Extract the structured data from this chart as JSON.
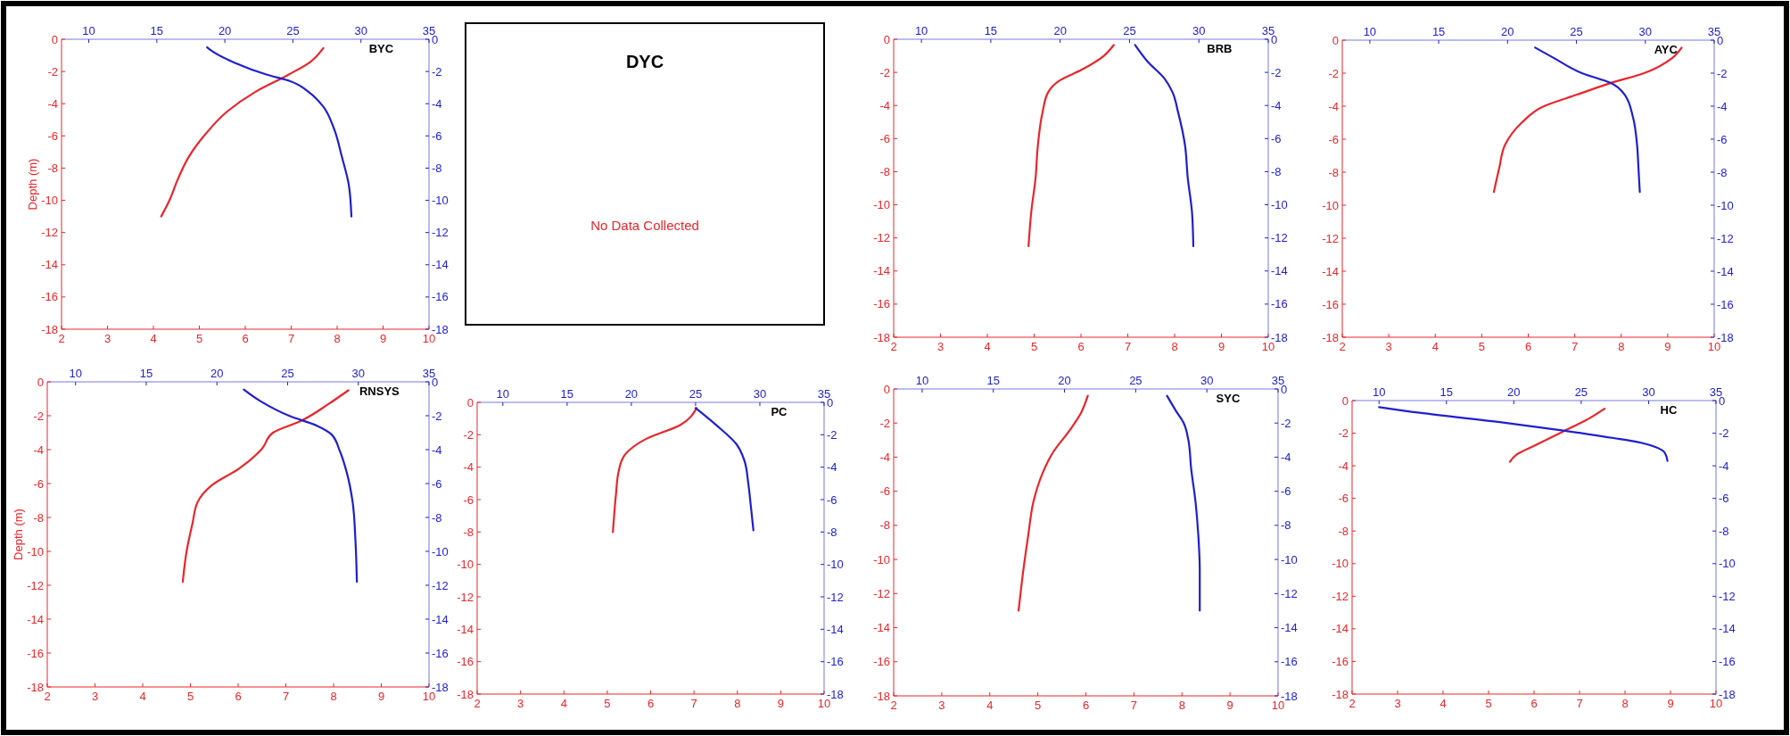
{
  "chart_data": [
    {
      "type": "line",
      "title": "BYC",
      "ylabel": "Depth (m)",
      "xlim": [
        2,
        10
      ],
      "xticks": [
        2,
        3,
        4,
        5,
        6,
        7,
        8,
        9,
        10
      ],
      "x2lim": [
        8,
        35
      ],
      "x2ticks": [
        10,
        15,
        20,
        25,
        30,
        35
      ],
      "ylim": [
        -18,
        0
      ],
      "yticks": [
        0,
        -2,
        -4,
        -6,
        -8,
        -10,
        -12,
        -14,
        -16,
        -18
      ],
      "y2lim": [
        -18,
        0
      ],
      "y2ticks": [
        0,
        -2,
        -4,
        -6,
        -8,
        -10,
        -12,
        -14,
        -16,
        -18
      ],
      "series": [
        {
          "color": "#e8262b",
          "x": [
            7.7,
            7.42,
            6.94,
            6.2,
            5.6,
            5.13,
            4.77,
            4.53,
            4.35,
            4.17
          ],
          "values": [
            -0.55,
            -1.4,
            -2.2,
            -3.3,
            -4.5,
            -5.9,
            -7.3,
            -8.7,
            -10.0,
            -11.0
          ]
        },
        {
          "color": "#1f1fcf",
          "axis": "x2",
          "x": [
            18.7,
            19.0,
            20.7,
            23.1,
            24.8,
            26.2,
            27.2,
            28.0,
            28.6,
            29.1,
            29.3
          ],
          "values": [
            -0.5,
            -0.7,
            -1.45,
            -2.2,
            -2.6,
            -3.3,
            -4.15,
            -5.5,
            -7.3,
            -9.0,
            -11.0
          ]
        }
      ]
    },
    {
      "type": "other",
      "title": "DYC",
      "annotations": [
        "No Data Collected"
      ]
    },
    {
      "type": "line",
      "title": "BRB",
      "xlim": [
        2,
        10
      ],
      "xticks": [
        2,
        3,
        4,
        5,
        6,
        7,
        8,
        9,
        10
      ],
      "x2lim": [
        8,
        35
      ],
      "x2ticks": [
        10,
        15,
        20,
        25,
        30,
        35
      ],
      "ylim": [
        -18,
        0
      ],
      "yticks": [
        0,
        -2,
        -4,
        -6,
        -8,
        -10,
        -12,
        -14,
        -16,
        -18
      ],
      "y2lim": [
        -18,
        0
      ],
      "y2ticks": [
        0,
        -2,
        -4,
        -6,
        -8,
        -10,
        -12,
        -14,
        -16,
        -18
      ],
      "series": [
        {
          "color": "#e8262b",
          "x": [
            6.7,
            6.49,
            6.01,
            5.54,
            5.3,
            5.18,
            5.08,
            5.03,
            4.94,
            4.88
          ],
          "values": [
            -0.35,
            -1.0,
            -1.85,
            -2.5,
            -3.2,
            -4.4,
            -6.4,
            -8.4,
            -10.4,
            -12.5
          ]
        },
        {
          "color": "#1f1fcf",
          "axis": "x2",
          "x": [
            25.4,
            26.3,
            27.5,
            28.1,
            28.5,
            29.0,
            29.2,
            29.5,
            29.6
          ],
          "values": [
            -0.35,
            -1.35,
            -2.35,
            -3.2,
            -4.4,
            -6.4,
            -8.4,
            -10.4,
            -12.5
          ]
        }
      ]
    },
    {
      "type": "line",
      "title": "AYC",
      "xlim": [
        2,
        10
      ],
      "xticks": [
        2,
        3,
        4,
        5,
        6,
        7,
        8,
        9,
        10
      ],
      "x2lim": [
        8,
        35
      ],
      "x2ticks": [
        10,
        15,
        20,
        25,
        30,
        35
      ],
      "ylim": [
        -18,
        0
      ],
      "yticks": [
        0,
        -2,
        -4,
        -6,
        -8,
        -10,
        -12,
        -14,
        -16,
        -18
      ],
      "y2lim": [
        -18,
        0
      ],
      "y2ticks": [
        0,
        -2,
        -4,
        -6,
        -8,
        -10,
        -12,
        -14,
        -16,
        -18
      ],
      "series": [
        {
          "color": "#e8262b",
          "x": [
            9.3,
            9.09,
            8.49,
            7.77,
            7.05,
            6.34,
            5.86,
            5.5,
            5.38,
            5.26
          ],
          "values": [
            -0.45,
            -1.1,
            -2.0,
            -2.6,
            -3.3,
            -4.0,
            -5.0,
            -6.35,
            -7.7,
            -9.2
          ]
        },
        {
          "color": "#1f1fcf",
          "axis": "x2",
          "x": [
            22.0,
            23.4,
            25.4,
            27.5,
            28.5,
            29.1,
            29.4,
            29.5,
            29.6
          ],
          "values": [
            -0.45,
            -1.1,
            -2.0,
            -2.6,
            -3.3,
            -4.65,
            -6.35,
            -7.7,
            -9.2
          ]
        }
      ]
    },
    {
      "type": "line",
      "title": "RNSYS",
      "ylabel": "Depth (m)",
      "xlim": [
        2,
        10
      ],
      "xticks": [
        2,
        3,
        4,
        5,
        6,
        7,
        8,
        9,
        10
      ],
      "x2lim": [
        8,
        35
      ],
      "x2ticks": [
        10,
        15,
        20,
        25,
        30,
        35
      ],
      "ylim": [
        -18,
        0
      ],
      "yticks": [
        0,
        -2,
        -4,
        -6,
        -8,
        -10,
        -12,
        -14,
        -16,
        -18
      ],
      "y2lim": [
        -18,
        0
      ],
      "y2ticks": [
        0,
        -2,
        -4,
        -6,
        -8,
        -10,
        -12,
        -14,
        -16,
        -18
      ],
      "series": [
        {
          "color": "#e8262b",
          "x": [
            8.31,
            7.9,
            7.32,
            6.73,
            6.5,
            6.03,
            5.45,
            5.15,
            5.04,
            4.92,
            4.84
          ],
          "values": [
            -0.5,
            -1.3,
            -2.3,
            -3.0,
            -3.95,
            -5.1,
            -6.1,
            -7.1,
            -8.4,
            -10.0,
            -11.8
          ]
        },
        {
          "color": "#1f1fcf",
          "axis": "x2",
          "x": [
            21.9,
            23.1,
            25.1,
            27.1,
            28.1,
            28.7,
            29.2,
            29.6,
            29.8,
            29.9
          ],
          "values": [
            -0.45,
            -1.15,
            -2.0,
            -2.6,
            -3.1,
            -4.1,
            -5.4,
            -7.1,
            -9.4,
            -11.8
          ]
        }
      ]
    },
    {
      "type": "line",
      "title": "PC",
      "xlim": [
        2,
        10
      ],
      "xticks": [
        2,
        3,
        4,
        5,
        6,
        7,
        8,
        9,
        10
      ],
      "x2lim": [
        8,
        35
      ],
      "x2ticks": [
        10,
        15,
        20,
        25,
        30,
        35
      ],
      "ylim": [
        -18,
        0
      ],
      "yticks": [
        0,
        -2,
        -4,
        -6,
        -8,
        -10,
        -12,
        -14,
        -16,
        -18
      ],
      "y2lim": [
        -18,
        0
      ],
      "y2ticks": [
        0,
        -2,
        -4,
        -6,
        -8,
        -10,
        -12,
        -14,
        -16,
        -18
      ],
      "series": [
        {
          "color": "#e8262b",
          "x": [
            7.06,
            6.68,
            5.9,
            5.39,
            5.26,
            5.2,
            5.13
          ],
          "values": [
            -0.35,
            -1.4,
            -2.25,
            -3.3,
            -4.3,
            -5.7,
            -8.0
          ]
        },
        {
          "color": "#1f1fcf",
          "axis": "x2",
          "x": [
            25.0,
            26.6,
            28.2,
            28.8,
            29.1,
            29.3,
            29.5
          ],
          "values": [
            -0.35,
            -1.4,
            -2.6,
            -3.6,
            -5.0,
            -6.4,
            -7.9
          ]
        }
      ]
    },
    {
      "type": "line",
      "title": "SYC",
      "xlim": [
        2,
        10
      ],
      "xticks": [
        2,
        3,
        4,
        5,
        6,
        7,
        8,
        9,
        10
      ],
      "x2lim": [
        8,
        35
      ],
      "x2ticks": [
        10,
        15,
        20,
        25,
        30,
        35
      ],
      "ylim": [
        -18,
        0
      ],
      "yticks": [
        0,
        -2,
        -4,
        -6,
        -8,
        -10,
        -12,
        -14,
        -16,
        -18
      ],
      "y2lim": [
        -18,
        0
      ],
      "y2ticks": [
        0,
        -2,
        -4,
        -6,
        -8,
        -10,
        -12,
        -14,
        -16,
        -18
      ],
      "series": [
        {
          "color": "#e8262b",
          "x": [
            6.04,
            5.9,
            5.67,
            5.32,
            5.09,
            4.91,
            4.8,
            4.7,
            4.6
          ],
          "values": [
            -0.4,
            -1.4,
            -2.4,
            -3.7,
            -5.0,
            -6.6,
            -8.6,
            -10.6,
            -13.0
          ]
        },
        {
          "color": "#1f1fcf",
          "axis": "x2",
          "x": [
            27.2,
            27.8,
            28.4,
            28.7,
            28.9,
            29.2,
            29.4,
            29.5,
            29.5
          ],
          "values": [
            -0.4,
            -1.25,
            -2.05,
            -3.0,
            -4.7,
            -6.6,
            -8.6,
            -10.6,
            -13.0
          ]
        }
      ]
    },
    {
      "type": "line",
      "title": "HC",
      "xlim": [
        2,
        10
      ],
      "xticks": [
        2,
        3,
        4,
        5,
        6,
        7,
        8,
        9,
        10
      ],
      "x2lim": [
        8,
        35
      ],
      "x2ticks": [
        10,
        15,
        20,
        25,
        30,
        35
      ],
      "ylim": [
        -18,
        0
      ],
      "yticks": [
        0,
        -2,
        -4,
        -6,
        -8,
        -10,
        -12,
        -14,
        -16,
        -18
      ],
      "y2lim": [
        -18,
        0
      ],
      "y2ticks": [
        0,
        -2,
        -4,
        -6,
        -8,
        -10,
        -12,
        -14,
        -16,
        -18
      ],
      "series": [
        {
          "color": "#e8262b",
          "x": [
            7.55,
            7.21,
            6.6,
            5.98,
            5.62,
            5.47
          ],
          "values": [
            -0.5,
            -1.1,
            -1.95,
            -2.8,
            -3.3,
            -3.75
          ]
        },
        {
          "color": "#1f1fcf",
          "axis": "x2",
          "x": [
            10.0,
            13.0,
            19.2,
            23.3,
            27.4,
            29.5,
            30.5,
            31.2,
            31.4
          ],
          "values": [
            -0.4,
            -0.75,
            -1.35,
            -1.8,
            -2.3,
            -2.6,
            -2.85,
            -3.2,
            -3.7
          ]
        }
      ]
    }
  ]
}
